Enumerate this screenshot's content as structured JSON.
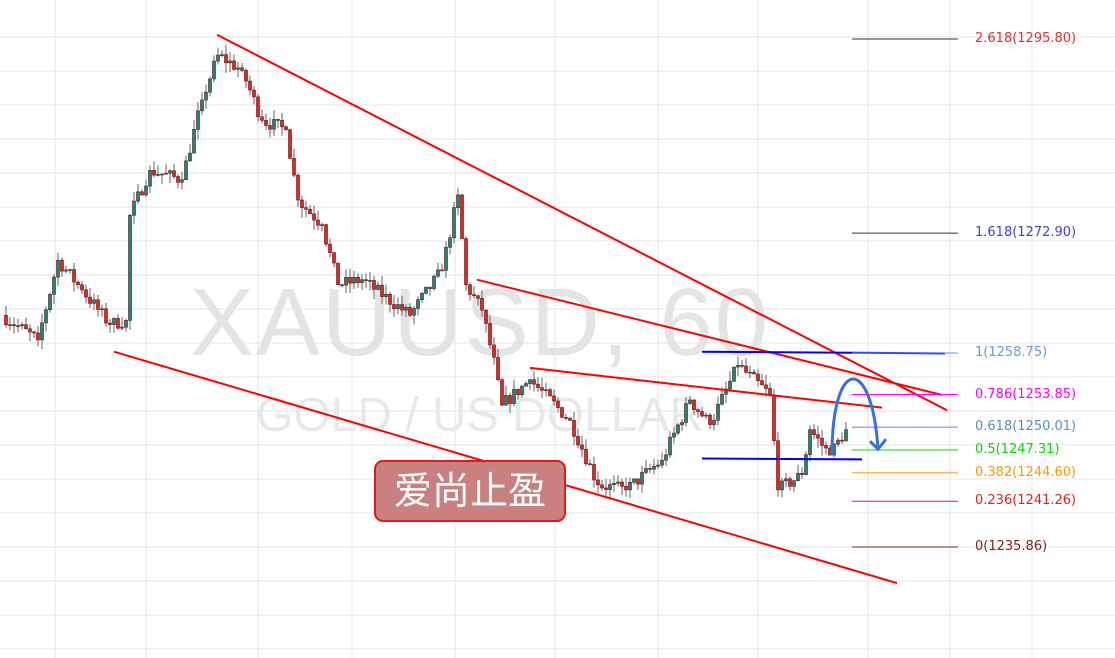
{
  "chart_data": {
    "type": "candlestick",
    "symbol_watermark": "XAUUSD, 60",
    "name_watermark": "GOLD / US DOLLAR",
    "annotation": "爱尚止盈",
    "grid": true,
    "price_path_bar_close": [
      [
        0,
        1263.2
      ],
      [
        9,
        1260.3
      ],
      [
        14,
        1269.7
      ],
      [
        20,
        1266.2
      ],
      [
        27,
        1262.1
      ],
      [
        31,
        1262.6
      ],
      [
        32,
        1275.0
      ],
      [
        37,
        1280.3
      ],
      [
        45,
        1279.2
      ],
      [
        50,
        1288.6
      ],
      [
        54,
        1293.9
      ],
      [
        60,
        1292.1
      ],
      [
        65,
        1286.2
      ],
      [
        71,
        1285.1
      ],
      [
        74,
        1276.8
      ],
      [
        80,
        1273.9
      ],
      [
        84,
        1266.8
      ],
      [
        90,
        1267.4
      ],
      [
        102,
        1263.2
      ],
      [
        110,
        1268.5
      ],
      [
        114,
        1277.4
      ],
      [
        116,
        1266.8
      ],
      [
        120,
        1263.8
      ],
      [
        124,
        1255.6
      ],
      [
        125,
        1252.6
      ],
      [
        132,
        1255.6
      ],
      [
        142,
        1250.8
      ],
      [
        149,
        1243.2
      ],
      [
        156,
        1242.6
      ],
      [
        165,
        1246.1
      ],
      [
        172,
        1253.2
      ],
      [
        177,
        1250.3
      ],
      [
        184,
        1257.3
      ],
      [
        192,
        1253.8
      ],
      [
        194,
        1242.6
      ],
      [
        200,
        1244.4
      ],
      [
        202,
        1249.7
      ],
      [
        207,
        1246.7
      ],
      [
        211,
        1249.7
      ]
    ],
    "trendlines": [
      {
        "color": "#ff0000",
        "points": [
          [
            53.75,
            1296.3
          ],
          [
            236.25,
            1252.0
          ]
        ]
      },
      {
        "color": "#ff0000",
        "points": [
          [
            28,
            1258.9
          ],
          [
            223.75,
            1231.6
          ]
        ]
      },
      {
        "color": "#ff0000",
        "points": [
          [
            118.75,
            1267.4
          ],
          [
            235,
            1253.8
          ]
        ]
      },
      {
        "color": "#ff0000",
        "points": [
          [
            132,
            1257.0
          ],
          [
            220,
            1252.3
          ]
        ]
      },
      {
        "color": "#0000ff",
        "points": [
          [
            175,
            1258.9
          ],
          [
            235.75,
            1258.7
          ]
        ]
      },
      {
        "color": "#0000ff",
        "points": [
          [
            175,
            1246.3
          ],
          [
            215,
            1246.2
          ]
        ]
      }
    ],
    "projection_arrow": {
      "color": "#3a6fd8",
      "from": [
        207.5,
        1246.7
      ],
      "peak": [
        212.5,
        1255.6
      ],
      "to": [
        219,
        1247.4
      ]
    },
    "fibonacci": [
      {
        "level": "2.618",
        "price": "1295.80",
        "color": "#e03030"
      },
      {
        "level": "1.618",
        "price": "1272.90",
        "color": "#4040e0"
      },
      {
        "level": "1",
        "price": "1258.75",
        "color": "#6a9ae0"
      },
      {
        "level": "0.786",
        "price": "1253.85",
        "color": "#ff00ff"
      },
      {
        "level": "0.618",
        "price": "1250.01",
        "color": "#5a8ad8"
      },
      {
        "level": "0.5",
        "price": "1247.31",
        "color": "#00dd00"
      },
      {
        "level": "0.382",
        "price": "1244.60",
        "color": "#ff9900"
      },
      {
        "level": "0.236",
        "price": "1241.26",
        "color": "#e02020"
      },
      {
        "level": "0",
        "price": "1235.86",
        "color": "#8b1a1a"
      }
    ],
    "colors": {
      "up": "#1a8a78",
      "down": "#e8251c",
      "border": "#5a1515",
      "wick": "#666666"
    }
  }
}
